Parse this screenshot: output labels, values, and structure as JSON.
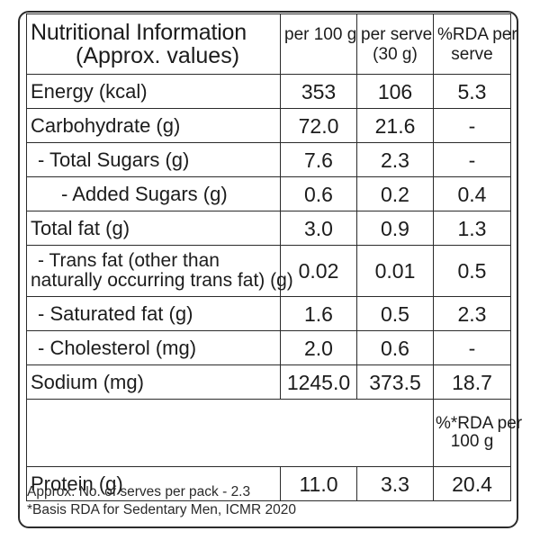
{
  "header": {
    "title_line1": "Nutritional Information",
    "title_line2": "(Approx. values)",
    "col_per100_line1": "per 100 g",
    "col_perserve_line1": "per serve",
    "col_perserve_line2": "(30 g)",
    "col_rda_line1": "%RDA per",
    "col_rda_line2": "serve"
  },
  "rows": [
    {
      "label": "Energy (kcal)",
      "per100": "353",
      "perserve": "106",
      "rda": "5.3"
    },
    {
      "label": "Carbohydrate (g)",
      "per100": "72.0",
      "perserve": "21.6",
      "rda": "-"
    },
    {
      "label": "- Total Sugars (g)",
      "per100": "7.6",
      "perserve": "2.3",
      "rda": "-"
    },
    {
      "label": "- Added Sugars (g)",
      "per100": "0.6",
      "perserve": "0.2",
      "rda": "0.4"
    },
    {
      "label": "Total fat (g)",
      "per100": "3.0",
      "perserve": "0.9",
      "rda": "1.3"
    },
    {
      "label_line1": "- Trans fat (other than",
      "label_line2": "naturally occurring trans fat) (g)",
      "per100": "0.02",
      "perserve": "0.01",
      "rda": "0.5"
    },
    {
      "label": "- Saturated fat (g)",
      "per100": "1.6",
      "perserve": "0.5",
      "rda": "2.3"
    },
    {
      "label": "- Cholesterol (mg)",
      "per100": "2.0",
      "perserve": "0.6",
      "rda": "-"
    },
    {
      "label": "Sodium (mg)",
      "per100": "1245.0",
      "perserve": "373.5",
      "rda": "18.7"
    }
  ],
  "rda_per100_header": {
    "line1": "%*RDA per",
    "line2": "100 g"
  },
  "protein": {
    "label": "Protein (g)",
    "per100": "11.0",
    "perserve": "3.3",
    "rda": "20.4"
  },
  "footnotes": {
    "serves": "Approx. No. of serves per pack - 2.3",
    "basis": "*Basis RDA for Sedentary Men, ICMR 2020"
  }
}
